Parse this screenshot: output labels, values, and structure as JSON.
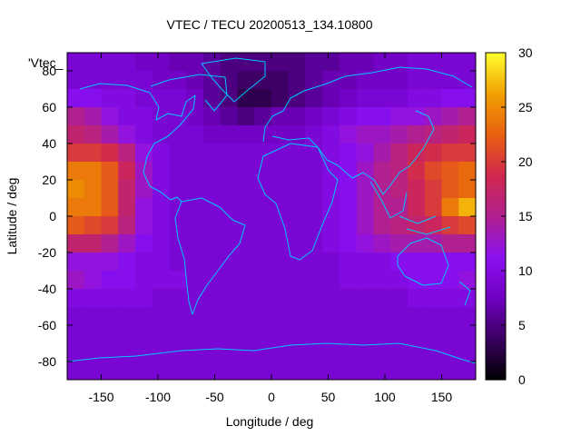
{
  "chart_data": {
    "type": "heatmap",
    "title": "VTEC / TECU 20200513_134.10800",
    "xlabel": "Longitude / deg",
    "ylabel": "Latitude / deg",
    "series_label": "'Vtec_",
    "xlim": [
      -180,
      180
    ],
    "ylim": [
      -90,
      90
    ],
    "x_ticks": [
      -150,
      -100,
      -50,
      0,
      50,
      100,
      150
    ],
    "y_ticks": [
      -80,
      -60,
      -40,
      -20,
      0,
      20,
      40,
      60,
      80
    ],
    "colorbar": {
      "range": [
        0,
        30
      ],
      "ticks": [
        0,
        5,
        10,
        15,
        20,
        25,
        30
      ],
      "palette": [
        "#000000",
        "#3a0060",
        "#7000c0",
        "#8a10f0",
        "#b02090",
        "#d02850",
        "#e86010",
        "#f0a000",
        "#ffff30"
      ]
    },
    "grid": {
      "lon": [
        -180,
        -165,
        -150,
        -135,
        -120,
        -105,
        -90,
        -75,
        -60,
        -45,
        -30,
        -15,
        0,
        15,
        30,
        45,
        60,
        75,
        90,
        105,
        120,
        135,
        150,
        165
      ],
      "lat": [
        80,
        70,
        60,
        50,
        40,
        30,
        20,
        10,
        0,
        -10,
        -20,
        -30,
        -40,
        -50,
        -60,
        -70,
        -80,
        -90
      ],
      "vtec": [
        [
          9,
          9,
          9,
          9,
          8,
          8,
          7,
          7,
          6,
          5,
          5,
          5,
          5,
          5,
          6,
          6,
          7,
          7,
          8,
          8,
          9,
          9,
          9,
          9
        ],
        [
          9,
          9,
          9,
          9,
          9,
          8,
          8,
          7,
          6,
          5,
          4,
          4,
          4,
          5,
          6,
          7,
          7,
          8,
          8,
          8,
          9,
          9,
          9,
          9
        ],
        [
          11,
          11,
          10,
          10,
          9,
          9,
          9,
          8,
          6,
          5,
          3,
          3,
          4,
          5,
          6,
          7,
          8,
          9,
          9,
          9,
          10,
          10,
          11,
          11
        ],
        [
          15,
          14,
          12,
          10,
          10,
          9,
          9,
          8,
          7,
          6,
          5,
          6,
          7,
          7,
          8,
          9,
          10,
          11,
          11,
          12,
          12,
          13,
          14,
          15
        ],
        [
          17,
          16,
          14,
          12,
          10,
          9,
          9,
          9,
          8,
          8,
          8,
          8,
          8,
          8,
          9,
          10,
          12,
          13,
          13,
          14,
          15,
          16,
          17,
          18
        ],
        [
          20,
          20,
          19,
          16,
          12,
          10,
          9,
          9,
          9,
          9,
          9,
          9,
          9,
          9,
          9,
          10,
          11,
          12,
          14,
          16,
          18,
          19,
          20,
          20
        ],
        [
          24,
          24,
          22,
          18,
          13,
          10,
          9,
          9,
          9,
          9,
          9,
          9,
          9,
          9,
          9,
          10,
          11,
          13,
          15,
          16,
          19,
          21,
          22,
          23
        ],
        [
          25,
          24,
          22,
          17,
          13,
          10,
          9,
          9,
          9,
          9,
          9,
          9,
          9,
          9,
          9,
          10,
          11,
          13,
          15,
          16,
          18,
          20,
          22,
          23
        ],
        [
          24,
          24,
          22,
          17,
          12,
          10,
          9,
          9,
          9,
          9,
          9,
          9,
          9,
          9,
          9,
          10,
          11,
          13,
          15,
          15,
          18,
          20,
          24,
          27
        ],
        [
          22,
          21,
          20,
          16,
          12,
          10,
          9,
          9,
          9,
          9,
          9,
          9,
          9,
          9,
          9,
          10,
          11,
          13,
          15,
          16,
          17,
          18,
          20,
          21
        ],
        [
          17,
          17,
          15,
          13,
          11,
          10,
          9,
          9,
          9,
          9,
          9,
          9,
          9,
          9,
          9,
          10,
          11,
          12,
          13,
          14,
          14,
          14,
          15,
          15
        ],
        [
          12,
          12,
          12,
          11,
          10,
          10,
          9,
          9,
          9,
          9,
          9,
          9,
          9,
          9,
          9,
          9,
          10,
          10,
          10,
          11,
          11,
          11,
          11,
          11
        ],
        [
          13,
          12,
          11,
          11,
          10,
          10,
          10,
          9,
          9,
          9,
          9,
          9,
          9,
          9,
          9,
          9,
          10,
          10,
          10,
          10,
          11,
          11,
          11,
          12
        ],
        [
          10,
          10,
          10,
          10,
          10,
          9,
          9,
          9,
          9,
          9,
          9,
          9,
          9,
          9,
          9,
          9,
          9,
          9,
          9,
          9,
          10,
          10,
          10,
          10
        ],
        [
          9,
          9,
          9,
          9,
          9,
          9,
          9,
          9,
          9,
          9,
          9,
          9,
          9,
          9,
          9,
          9,
          9,
          9,
          9,
          9,
          9,
          9,
          9,
          9
        ],
        [
          9,
          9,
          9,
          9,
          9,
          9,
          9,
          9,
          9,
          9,
          9,
          9,
          9,
          9,
          9,
          9,
          9,
          9,
          9,
          9,
          9,
          9,
          9,
          9
        ],
        [
          9,
          9,
          9,
          9,
          9,
          9,
          9,
          9,
          9,
          9,
          9,
          9,
          9,
          9,
          9,
          9,
          9,
          9,
          9,
          9,
          9,
          9,
          9,
          9
        ],
        [
          9,
          9,
          9,
          9,
          9,
          9,
          9,
          9,
          9,
          9,
          9,
          9,
          9,
          9,
          9,
          9,
          9,
          9,
          9,
          9,
          9,
          9,
          9,
          9
        ]
      ]
    }
  }
}
